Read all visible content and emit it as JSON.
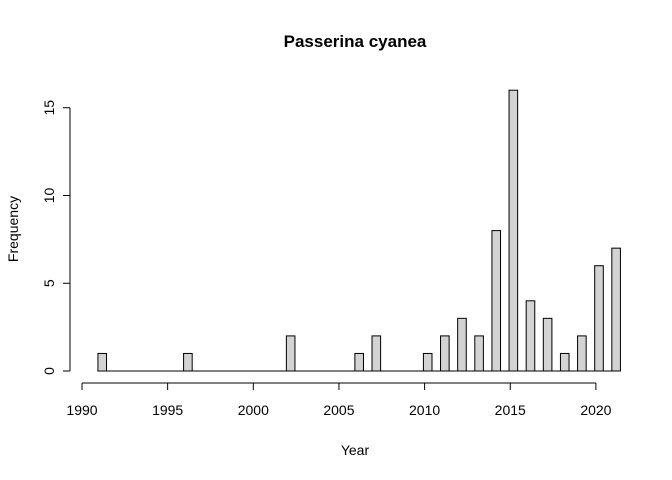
{
  "chart_data": {
    "type": "bar",
    "title": "Passerina cyanea",
    "xlabel": "Year",
    "ylabel": "Frequency",
    "x": [
      1991,
      1992,
      1993,
      1994,
      1995,
      1996,
      1997,
      1998,
      1999,
      2000,
      2001,
      2002,
      2003,
      2004,
      2005,
      2006,
      2007,
      2008,
      2009,
      2010,
      2011,
      2012,
      2013,
      2014,
      2015,
      2016,
      2017,
      2018,
      2019,
      2020,
      2021
    ],
    "values": [
      1,
      0,
      0,
      0,
      0,
      1,
      0,
      0,
      0,
      0,
      0,
      2,
      0,
      0,
      0,
      1,
      2,
      0,
      0,
      1,
      2,
      3,
      2,
      8,
      16,
      4,
      3,
      1,
      2,
      6,
      7
    ],
    "xlim": [
      1990,
      2021
    ],
    "ylim": [
      0,
      16
    ],
    "xticks": [
      1990,
      1995,
      2000,
      2005,
      2010,
      2015,
      2020
    ],
    "yticks": [
      0,
      5,
      10,
      15
    ],
    "bar_color": "#d3d3d3",
    "edge_color": "#000000",
    "grid": false,
    "legend": "none"
  }
}
